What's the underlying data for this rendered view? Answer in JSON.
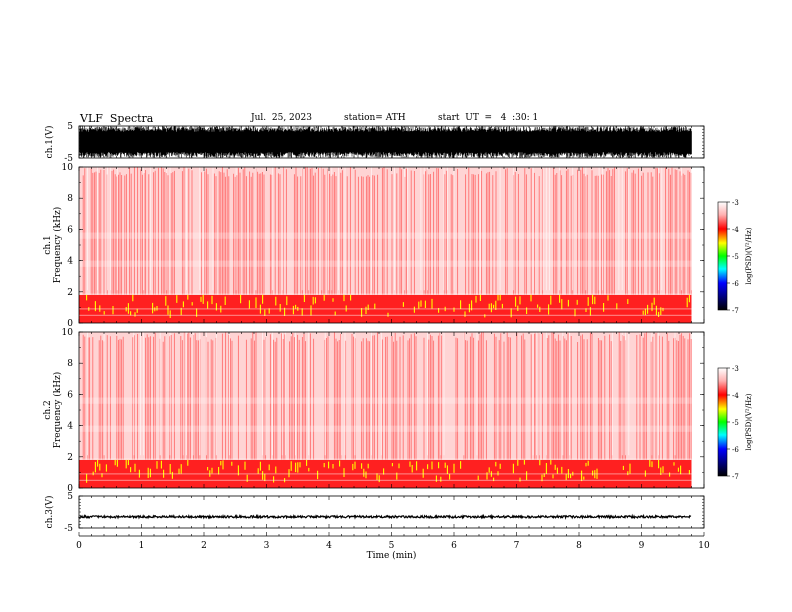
{
  "header": {
    "title": "VLF  Spectra",
    "date": "Jul.  25, 2023",
    "station": "station= ATH",
    "start": "start  UT  =   4  :30: 1"
  },
  "colors": {
    "waveform": "#000000",
    "spec_background": "#ffffff",
    "spec_main": "#ff2020",
    "spec_light": "#ffb0b0",
    "spec_highlight": "#ffff00"
  },
  "chart_data": [
    {
      "id": "ch1-waveform",
      "type": "line",
      "ylabel": "ch.1(V)",
      "ylim": [
        -5,
        5
      ],
      "yticks": [
        "5",
        "-5"
      ],
      "xlim": [
        0,
        10
      ],
      "description_values": {
        "envelope_min": -5,
        "envelope_max": 5,
        "duration_min": 9.8
      }
    },
    {
      "id": "ch1-spectrogram",
      "type": "heatmap",
      "ylabel_top": "ch.1",
      "ylabel": "Frequency  (kHz)",
      "ylim": [
        0,
        10
      ],
      "yticks": [
        "0",
        "2",
        "4",
        "6",
        "8",
        "10"
      ],
      "xlim": [
        0,
        10
      ],
      "bands": [
        {
          "from": 0,
          "to": 1.8,
          "level": "high"
        },
        {
          "from": 1.8,
          "to": 10,
          "level": "medium"
        }
      ],
      "colorbar": {
        "label": "log(PSD)(V²/Hz)",
        "ticks": [
          "-3",
          "-4",
          "-5",
          "-6",
          "-7"
        ],
        "range": [
          -7,
          -3
        ]
      }
    },
    {
      "id": "ch2-spectrogram",
      "type": "heatmap",
      "ylabel_top": "ch.2",
      "ylabel": "Frequency  (kHz)",
      "ylim": [
        0,
        10
      ],
      "yticks": [
        "0",
        "2",
        "4",
        "6",
        "8",
        "10"
      ],
      "xlim": [
        0,
        10
      ],
      "bands": [
        {
          "from": 0,
          "to": 1.8,
          "level": "high"
        },
        {
          "from": 1.8,
          "to": 10,
          "level": "medium"
        }
      ],
      "colorbar": {
        "label": "log(PSD)(V²/Hz)",
        "ticks": [
          "-3",
          "-4",
          "-5",
          "-6",
          "-7"
        ],
        "range": [
          -7,
          -3
        ]
      }
    },
    {
      "id": "ch3-waveform",
      "type": "line",
      "ylabel": "ch.3(V)",
      "ylim": [
        -5,
        5
      ],
      "yticks": [
        "5",
        "-5"
      ],
      "xlim": [
        0,
        10
      ],
      "description_values": {
        "baseline": -1.5
      }
    }
  ],
  "xaxis": {
    "label": "Time  (min)",
    "ticks": [
      "0",
      "1",
      "2",
      "3",
      "4",
      "5",
      "6",
      "7",
      "8",
      "9",
      "10"
    ]
  }
}
